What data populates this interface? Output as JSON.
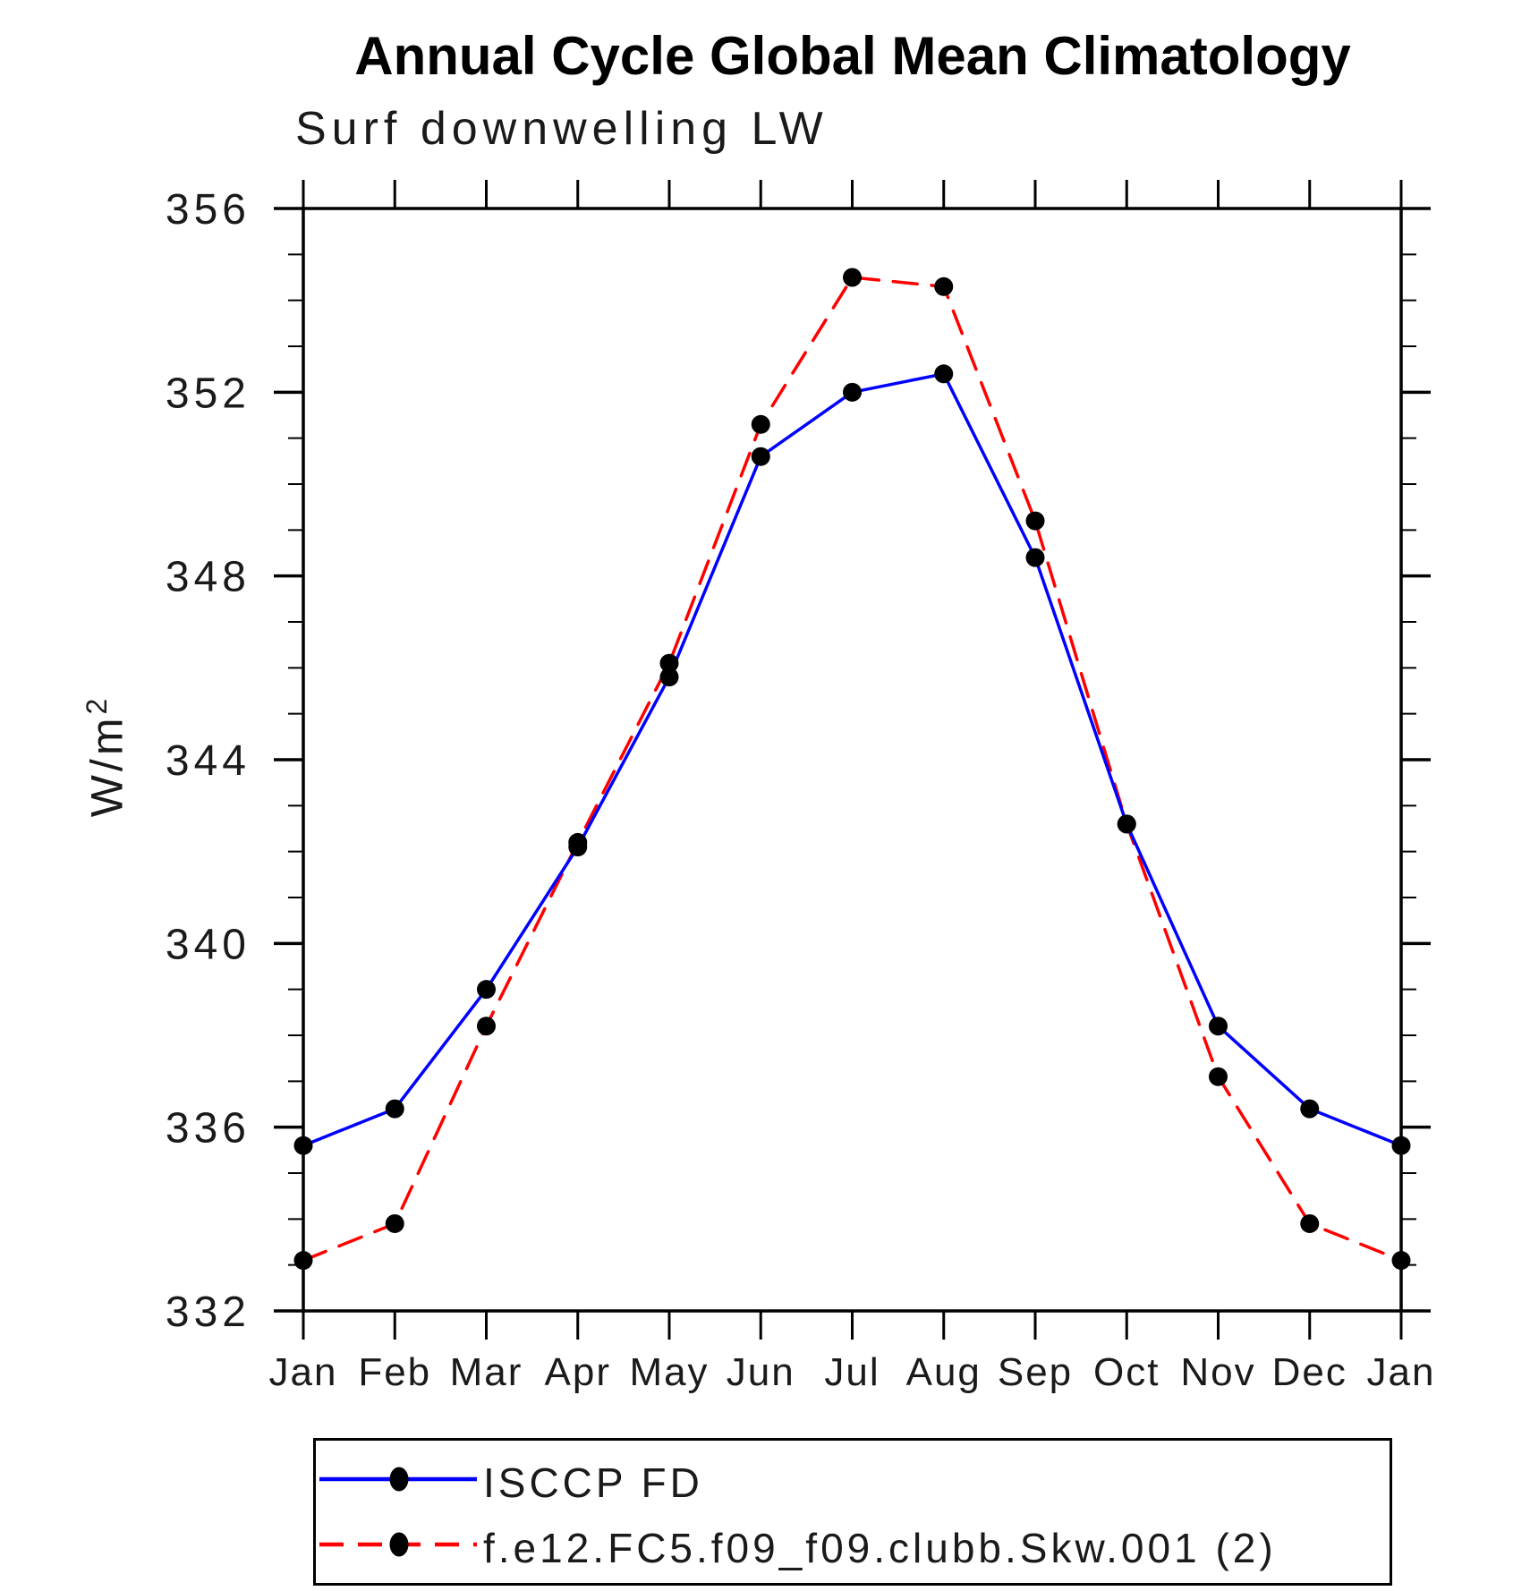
{
  "title": "Annual Cycle Global Mean Climatology",
  "subtitle": "Surf downwelling LW",
  "ylabel_base": "W/m",
  "ylabel_sup": "2",
  "legend": {
    "items": [
      {
        "label": "ISCCP FD",
        "color": "#0000ff",
        "style": "solid"
      },
      {
        "label": "f.e12.FC5.f09_f09.clubb.Skw.001 (2)",
        "color": "#ff0000",
        "style": "dashed"
      }
    ],
    "marker_color": "#000000"
  },
  "chart_data": {
    "type": "line",
    "title": "Annual Cycle Global Mean Climatology",
    "subtitle": "Surf downwelling LW",
    "ylabel": "W/m²",
    "categories": [
      "Jan",
      "Feb",
      "Mar",
      "Apr",
      "May",
      "Jun",
      "Jul",
      "Aug",
      "Sep",
      "Oct",
      "Nov",
      "Dec",
      "Jan"
    ],
    "series": [
      {
        "name": "ISCCP FD",
        "color": "#0000ff",
        "dash": "solid",
        "marker": "circle",
        "values": [
          335.6,
          336.4,
          339.0,
          342.1,
          345.8,
          350.6,
          352.0,
          352.4,
          348.4,
          342.6,
          338.2,
          336.4,
          335.6
        ]
      },
      {
        "name": "f.e12.FC5.f09_f09.clubb.Skw.001 (2)",
        "color": "#ff0000",
        "dash": "dashed",
        "marker": "circle",
        "values": [
          333.1,
          333.9,
          338.2,
          342.2,
          346.1,
          351.3,
          354.5,
          354.3,
          349.2,
          342.6,
          337.1,
          333.9,
          333.1
        ]
      }
    ],
    "ylim": [
      332,
      356
    ],
    "yticks_major": [
      332,
      336,
      340,
      344,
      348,
      352,
      356
    ],
    "ytick_minor_step": 1,
    "marker_color": "#000000",
    "axis_color": "#000000",
    "grid": false,
    "legend_position": "bottom-left-box"
  }
}
